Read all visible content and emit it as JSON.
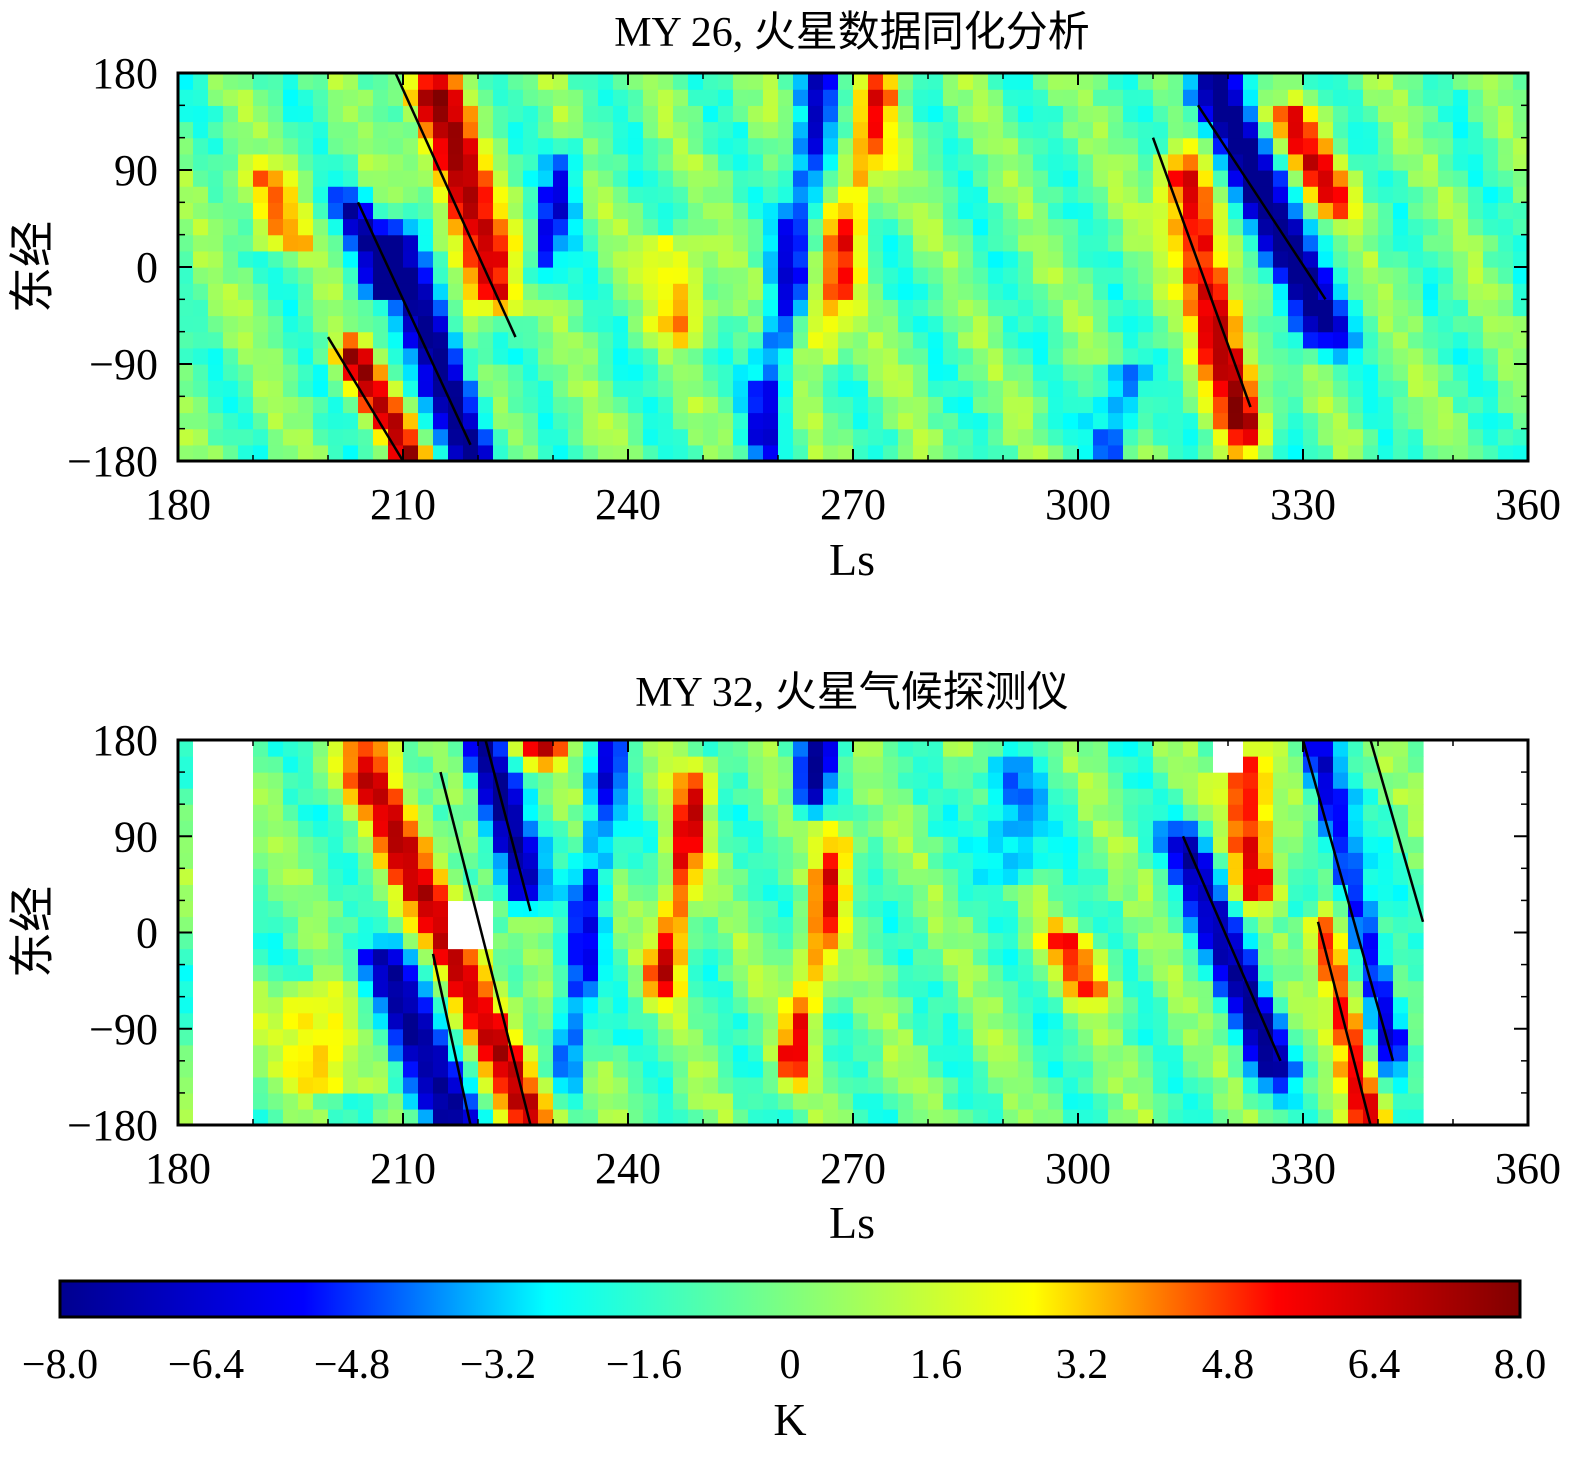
{
  "chart_data": [
    {
      "type": "heatmap",
      "title": "MY 26, 火星数据同化分析",
      "xlabel": "Ls",
      "ylabel": "东经",
      "xlim": [
        180,
        360
      ],
      "ylim": [
        -180,
        180
      ],
      "x_ticks": [
        "180",
        "210",
        "240",
        "270",
        "300",
        "330",
        "360"
      ],
      "y_ticks": [
        "180",
        "90",
        "0",
        "−90",
        "−180"
      ],
      "x_data_range": [
        180,
        360
      ],
      "features": [
        {
          "kind": "band",
          "sign": "positive",
          "peak": 7.8,
          "ls_top": 214,
          "ls_bottom": 222,
          "lon_top": 160,
          "lon_bottom": -20,
          "spread": 4
        },
        {
          "kind": "band",
          "sign": "negative",
          "peak": -7.5,
          "ls_top": 210,
          "ls_bottom": 219,
          "lon_top": 20,
          "lon_bottom": -170,
          "spread": 3.5
        },
        {
          "kind": "band",
          "sign": "positive",
          "peak": 6.5,
          "ls_top": 203,
          "ls_bottom": 211,
          "lon_top": -80,
          "lon_bottom": -175,
          "spread": 3
        },
        {
          "kind": "band",
          "sign": "negative",
          "peak": -5.5,
          "ls_top": 203,
          "ls_bottom": 208,
          "lon_top": 60,
          "lon_bottom": -20,
          "spread": 3
        },
        {
          "kind": "band",
          "sign": "positive",
          "peak": 7.5,
          "ls_top": 314,
          "ls_bottom": 322,
          "lon_top": 80,
          "lon_bottom": -140,
          "spread": 3.5
        },
        {
          "kind": "band",
          "sign": "negative",
          "peak": -7.8,
          "ls_top": 318,
          "ls_bottom": 332,
          "lon_top": 160,
          "lon_bottom": -50,
          "spread": 4
        },
        {
          "kind": "band",
          "sign": "positive",
          "peak": 5.5,
          "ls_top": 328,
          "ls_bottom": 334,
          "lon_top": 140,
          "lon_bottom": 60,
          "spread": 4
        },
        {
          "kind": "band",
          "sign": "positive",
          "peak": 5.0,
          "ls_top": 274,
          "ls_bottom": 266,
          "lon_top": 170,
          "lon_bottom": -60,
          "spread": 3
        },
        {
          "kind": "band",
          "sign": "negative",
          "peak": -5.0,
          "ls_top": 266,
          "ls_bottom": 258,
          "lon_top": 180,
          "lon_bottom": -150,
          "spread": 2.5
        },
        {
          "kind": "band",
          "sign": "positive",
          "peak": 4.0,
          "ls_top": 190,
          "ls_bottom": 194,
          "lon_top": 90,
          "lon_bottom": 20,
          "spread": 4
        },
        {
          "kind": "band",
          "sign": "positive",
          "peak": 4.0,
          "ls_top": 246,
          "ls_bottom": 248,
          "lon_top": 20,
          "lon_bottom": -60,
          "spread": 4
        },
        {
          "kind": "band",
          "sign": "negative",
          "peak": -4.5,
          "ls_top": 232,
          "ls_bottom": 228,
          "lon_top": 100,
          "lon_bottom": -10,
          "spread": 2.5
        },
        {
          "kind": "band",
          "sign": "negative",
          "peak": -4.0,
          "ls_top": 306,
          "ls_bottom": 304,
          "lon_top": -100,
          "lon_bottom": -180,
          "spread": 3
        }
      ],
      "trend_lines": [
        {
          "ls": [
            209,
            225
          ],
          "lon": [
            180,
            -65
          ]
        },
        {
          "ls": [
            204,
            219
          ],
          "lon": [
            60,
            -165
          ]
        },
        {
          "ls": [
            200,
            210
          ],
          "lon": [
            -65,
            -180
          ]
        },
        {
          "ls": [
            310,
            323
          ],
          "lon": [
            120,
            -130
          ]
        },
        {
          "ls": [
            316,
            333
          ],
          "lon": [
            150,
            -30
          ]
        }
      ]
    },
    {
      "type": "heatmap",
      "title": "MY 32, 火星气候探测仪",
      "xlabel": "Ls",
      "ylabel": "东经",
      "xlim": [
        180,
        360
      ],
      "ylim": [
        -180,
        180
      ],
      "x_ticks": [
        "180",
        "210",
        "240",
        "270",
        "300",
        "330",
        "360"
      ],
      "y_ticks": [
        "180",
        "90",
        "0",
        "−90",
        "−180"
      ],
      "x_data_range": [
        180,
        345
      ],
      "missing_regions": [
        {
          "ls": [
            183,
            190
          ],
          "lon": [
            -180,
            180
          ]
        },
        {
          "ls": [
            217,
            222
          ],
          "lon": [
            -20,
            30
          ]
        },
        {
          "ls": [
            318,
            322
          ],
          "lon": [
            150,
            180
          ]
        }
      ],
      "features": [
        {
          "kind": "band",
          "sign": "positive",
          "peak": 7.0,
          "ls_top": 206,
          "ls_bottom": 228,
          "lon_top": 150,
          "lon_bottom": -180,
          "spread": 4
        },
        {
          "kind": "band",
          "sign": "negative",
          "peak": -7.5,
          "ls_top": 221,
          "ls_bottom": 226,
          "lon_top": 170,
          "lon_bottom": 40,
          "spread": 3
        },
        {
          "kind": "band",
          "sign": "negative",
          "peak": -6.0,
          "ls_top": 208,
          "ls_bottom": 216,
          "lon_top": -30,
          "lon_bottom": -170,
          "spread": 5
        },
        {
          "kind": "band",
          "sign": "positive",
          "peak": 6.5,
          "ls_top": 228,
          "ls_bottom": 228,
          "lon_top": 180,
          "lon_bottom": 160,
          "spread": 4
        },
        {
          "kind": "band",
          "sign": "positive",
          "peak": 6.0,
          "ls_top": 249,
          "ls_bottom": 245,
          "lon_top": 140,
          "lon_bottom": -40,
          "spread": 2.5
        },
        {
          "kind": "band",
          "sign": "positive",
          "peak": 5.5,
          "ls_top": 268,
          "ls_bottom": 262,
          "lon_top": 80,
          "lon_bottom": -120,
          "spread": 2.5
        },
        {
          "kind": "band",
          "sign": "negative",
          "peak": -6.0,
          "ls_top": 266,
          "ls_bottom": 264,
          "lon_top": 180,
          "lon_bottom": 120,
          "spread": 2.5
        },
        {
          "kind": "band",
          "sign": "negative",
          "peak": -6.0,
          "ls_top": 315,
          "ls_bottom": 326,
          "lon_top": 80,
          "lon_bottom": -120,
          "spread": 3.5
        },
        {
          "kind": "band",
          "sign": "positive",
          "peak": 6.5,
          "ls_top": 322,
          "ls_bottom": 324,
          "lon_top": 160,
          "lon_bottom": 40,
          "spread": 3.5
        },
        {
          "kind": "band",
          "sign": "positive",
          "peak": 7.0,
          "ls_top": 333,
          "ls_bottom": 339,
          "lon_top": 0,
          "lon_bottom": -170,
          "spread": 2.5
        },
        {
          "kind": "band",
          "sign": "negative",
          "peak": -6.0,
          "ls_top": 332,
          "ls_bottom": 342,
          "lon_top": 160,
          "lon_bottom": -100,
          "spread": 2.5
        },
        {
          "kind": "band",
          "sign": "positive",
          "peak": 4.5,
          "ls_top": 298,
          "ls_bottom": 302,
          "lon_top": 0,
          "lon_bottom": -60,
          "spread": 4
        },
        {
          "kind": "band",
          "sign": "positive",
          "peak": 4.5,
          "ls_top": 197,
          "ls_bottom": 200,
          "lon_top": -60,
          "lon_bottom": -140,
          "spread": 5
        },
        {
          "kind": "band",
          "sign": "negative",
          "peak": -4.5,
          "ls_top": 238,
          "ls_bottom": 232,
          "lon_top": 180,
          "lon_bottom": -120,
          "spread": 2.5
        },
        {
          "kind": "band",
          "sign": "negative",
          "peak": -4.0,
          "ls_top": 290,
          "ls_bottom": 292,
          "lon_top": 150,
          "lon_bottom": 60,
          "spread": 4
        }
      ],
      "trend_lines": [
        {
          "ls": [
            221,
            227
          ],
          "lon": [
            180,
            20
          ]
        },
        {
          "ls": [
            215,
            227
          ],
          "lon": [
            150,
            -180
          ]
        },
        {
          "ls": [
            214,
            219
          ],
          "lon": [
            -20,
            -180
          ]
        },
        {
          "ls": [
            314,
            327
          ],
          "lon": [
            90,
            -120
          ]
        },
        {
          "ls": [
            332,
            339
          ],
          "lon": [
            10,
            -180
          ]
        },
        {
          "ls": [
            330,
            342
          ],
          "lon": [
            180,
            -120
          ]
        },
        {
          "ls": [
            339,
            346
          ],
          "lon": [
            180,
            10
          ]
        }
      ]
    }
  ],
  "colorbar": {
    "label": "K",
    "min": -8.0,
    "max": 8.0,
    "ticks": [
      "−8.0",
      "−6.4",
      "−4.8",
      "−3.2",
      "−1.6",
      "0",
      "1.6",
      "3.2",
      "4.8",
      "6.4",
      "8.0"
    ],
    "colormap": [
      "#00008f",
      "#0000ff",
      "#00ffff",
      "#7fff7f",
      "#ffff00",
      "#ff0000",
      "#800000"
    ]
  }
}
